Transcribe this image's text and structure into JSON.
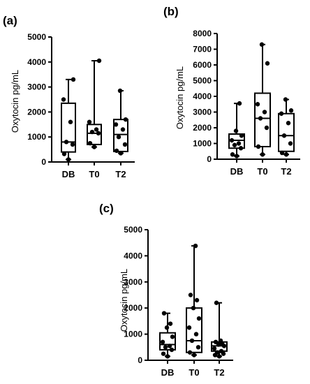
{
  "chart_data": [
    {
      "type": "box",
      "panel_label": "(a)",
      "ylabel": "Oxytocin pg/mL",
      "ylim": [
        0,
        5000
      ],
      "yticks": [
        0,
        1000,
        2000,
        3000,
        4000,
        5000
      ],
      "categories": [
        "DB",
        "T0",
        "T2"
      ],
      "boxes": [
        {
          "min": 100,
          "q1": 400,
          "median": 800,
          "q3": 2350,
          "max": 3300,
          "points": [
            100,
            320,
            700,
            800,
            1600,
            2500,
            3300
          ]
        },
        {
          "min": 600,
          "q1": 700,
          "median": 1150,
          "q3": 1500,
          "max": 4050,
          "points": [
            600,
            750,
            1150,
            1200,
            1300,
            1600,
            4050
          ]
        },
        {
          "min": 350,
          "q1": 420,
          "median": 1100,
          "q3": 1700,
          "max": 2850,
          "points": [
            350,
            450,
            700,
            1000,
            1300,
            1500,
            1700,
            2850
          ]
        }
      ]
    },
    {
      "type": "box",
      "panel_label": "(b)",
      "ylabel": "Oxytocin pg/mL",
      "ylim": [
        0,
        8000
      ],
      "yticks": [
        0,
        1000,
        2000,
        3000,
        4000,
        5000,
        6000,
        7000,
        8000
      ],
      "categories": [
        "DB",
        "T0",
        "T2"
      ],
      "boxes": [
        {
          "min": 200,
          "q1": 700,
          "median": 1200,
          "q3": 1600,
          "max": 3550,
          "points": [
            200,
            300,
            700,
            900,
            1000,
            1200,
            1500,
            1800,
            3550
          ]
        },
        {
          "min": 300,
          "q1": 800,
          "median": 2600,
          "q3": 4200,
          "max": 7300,
          "points": [
            300,
            800,
            2000,
            2600,
            3000,
            3500,
            6100,
            7300
          ]
        },
        {
          "min": 300,
          "q1": 500,
          "median": 1500,
          "q3": 2900,
          "max": 3800,
          "points": [
            300,
            400,
            1000,
            1500,
            2300,
            2900,
            3100,
            3800
          ]
        }
      ]
    },
    {
      "type": "box",
      "panel_label": "(c)",
      "ylabel": "Oxytocin pg/mL",
      "ylim": [
        0,
        5000
      ],
      "yticks": [
        0,
        1000,
        2000,
        3000,
        4000,
        5000
      ],
      "categories": [
        "DB",
        "T0",
        "T2"
      ],
      "boxes": [
        {
          "min": 150,
          "q1": 400,
          "median": 600,
          "q3": 1050,
          "max": 1800,
          "points": [
            150,
            250,
            400,
            500,
            550,
            700,
            900,
            1250,
            1400,
            1800
          ]
        },
        {
          "min": 200,
          "q1": 300,
          "median": 750,
          "q3": 2000,
          "max": 4380,
          "points": [
            200,
            300,
            500,
            750,
            1000,
            1250,
            1600,
            2000,
            2300,
            2500,
            4380
          ]
        },
        {
          "min": 150,
          "q1": 350,
          "median": 550,
          "q3": 700,
          "max": 2200,
          "points": [
            150,
            200,
            250,
            300,
            350,
            450,
            550,
            600,
            650,
            700,
            750,
            2200
          ]
        }
      ]
    }
  ]
}
